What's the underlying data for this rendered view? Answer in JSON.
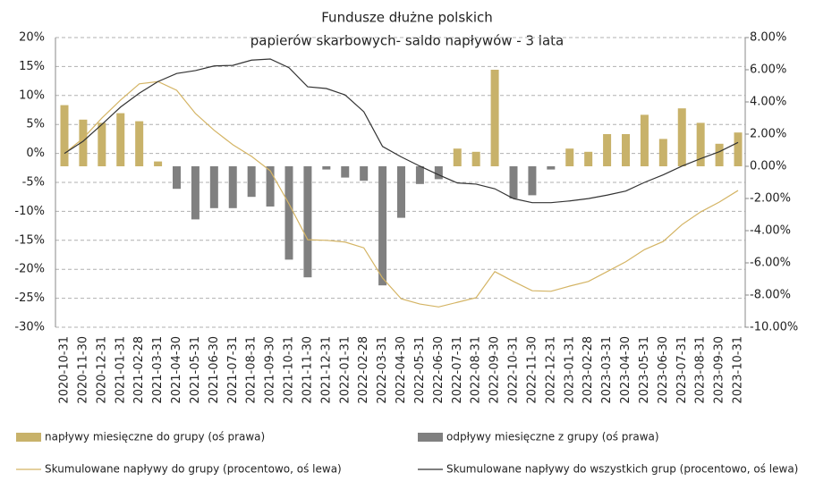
{
  "chart_data": {
    "type": "combo",
    "title": [
      "Fundusze dłużne polskich",
      "papierów skarbowych- saldo napływów - 3 lata"
    ],
    "categories": [
      "2020-10-31",
      "2020-11-30",
      "2020-12-31",
      "2021-01-31",
      "2021-02-28",
      "2021-03-31",
      "2021-04-30",
      "2021-05-31",
      "2021-06-30",
      "2021-07-31",
      "2021-08-31",
      "2021-09-30",
      "2021-10-31",
      "2021-11-30",
      "2021-12-31",
      "2022-01-31",
      "2022-02-28",
      "2022-03-31",
      "2022-04-30",
      "2022-05-31",
      "2022-06-30",
      "2022-07-31",
      "2022-08-31",
      "2022-09-30",
      "2022-10-31",
      "2022-11-30",
      "2022-12-31",
      "2023-01-31",
      "2023-02-28",
      "2023-03-31",
      "2023-04-30",
      "2023-05-31",
      "2023-06-30",
      "2023-07-31",
      "2023-08-31",
      "2023-09-30",
      "2023-10-31"
    ],
    "series": [
      {
        "name": "napływy miesięczne do grupy (oś prawa)",
        "type": "bar",
        "axis": "y2",
        "color": "#c8b26a",
        "values": [
          3.8,
          2.9,
          2.7,
          3.3,
          2.8,
          0.3,
          null,
          null,
          null,
          null,
          null,
          null,
          null,
          null,
          null,
          null,
          null,
          null,
          null,
          null,
          null,
          1.1,
          0.9,
          6.0,
          null,
          null,
          null,
          1.1,
          0.9,
          2.0,
          2.0,
          3.2,
          1.7,
          3.6,
          2.7,
          1.4,
          2.1
        ]
      },
      {
        "name": "odpływy miesięczne z grupy (oś prawa)",
        "type": "bar",
        "axis": "y2",
        "color": "#808080",
        "values": [
          null,
          null,
          null,
          null,
          null,
          null,
          -1.4,
          -3.3,
          -2.6,
          -2.6,
          -1.9,
          -2.5,
          -5.8,
          -6.9,
          -0.2,
          -0.7,
          -0.9,
          -7.4,
          -3.2,
          -1.1,
          -0.8,
          null,
          null,
          null,
          -2.0,
          -1.8,
          -0.2,
          null,
          null,
          null,
          null,
          null,
          null,
          null,
          null,
          null,
          null
        ]
      },
      {
        "name": "Skumulowane napływy do grupy (procentowo, oś lewa)",
        "type": "line",
        "color": "#d4b464",
        "values": [
          0,
          2.6,
          6.1,
          9.2,
          12.0,
          12.4,
          10.9,
          6.9,
          4.0,
          1.5,
          -0.5,
          -3.0,
          -8.7,
          -14.9,
          -15.0,
          -15.3,
          -16.3,
          -21.5,
          -25.1,
          -26.0,
          -26.5,
          -25.7,
          -24.9,
          -20.4,
          -22.1,
          -23.7,
          -23.8,
          -22.9,
          -22.1,
          -20.4,
          -18.7,
          -16.6,
          -15.2,
          -12.3,
          -10.1,
          -8.4,
          -6.4
        ]
      },
      {
        "name": "Skumulowane napływy do wszystkich grup (procentowo, oś lewa)",
        "type": "line",
        "color": "#333333",
        "values": [
          0,
          2.1,
          5.0,
          8.0,
          10.4,
          12.4,
          13.8,
          14.3,
          15.1,
          15.2,
          16.1,
          16.3,
          14.8,
          11.5,
          11.2,
          10.1,
          7.2,
          1.2,
          -0.6,
          -2.2,
          -3.7,
          -5.1,
          -5.3,
          -6.1,
          -7.8,
          -8.5,
          -8.5,
          -8.2,
          -7.8,
          -7.2,
          -6.5,
          -5.0,
          -3.7,
          -2.2,
          -0.9,
          0.3,
          1.9
        ]
      }
    ],
    "ylim": [
      -30,
      20
    ],
    "yticks": [
      {
        "value": 20,
        "label": "20%"
      },
      {
        "value": 15,
        "label": "15%"
      },
      {
        "value": 10,
        "label": "10%"
      },
      {
        "value": 5,
        "label": "5%"
      },
      {
        "value": 0,
        "label": "0%"
      },
      {
        "value": -5,
        "label": "-5%"
      },
      {
        "value": -10,
        "label": "-10%"
      },
      {
        "value": -15,
        "label": "-15%"
      },
      {
        "value": -20,
        "label": "-20%"
      },
      {
        "value": -25,
        "label": "-25%"
      },
      {
        "value": -30,
        "label": "-30%"
      }
    ],
    "y2lim": [
      -10,
      8
    ],
    "y2ticks": [
      {
        "value": 8,
        "label": "8.00%"
      },
      {
        "value": 6,
        "label": "6.00%"
      },
      {
        "value": 4,
        "label": "4.00%"
      },
      {
        "value": 2,
        "label": "2.00%"
      },
      {
        "value": 0,
        "label": "0.00%"
      },
      {
        "value": -2,
        "label": "-2.00%"
      },
      {
        "value": -4,
        "label": "-4.00%"
      },
      {
        "value": -6,
        "label": "-6.00%"
      },
      {
        "value": -8,
        "label": "-8.00%"
      },
      {
        "value": -10,
        "label": "-10.00%"
      }
    ],
    "grid": true
  }
}
